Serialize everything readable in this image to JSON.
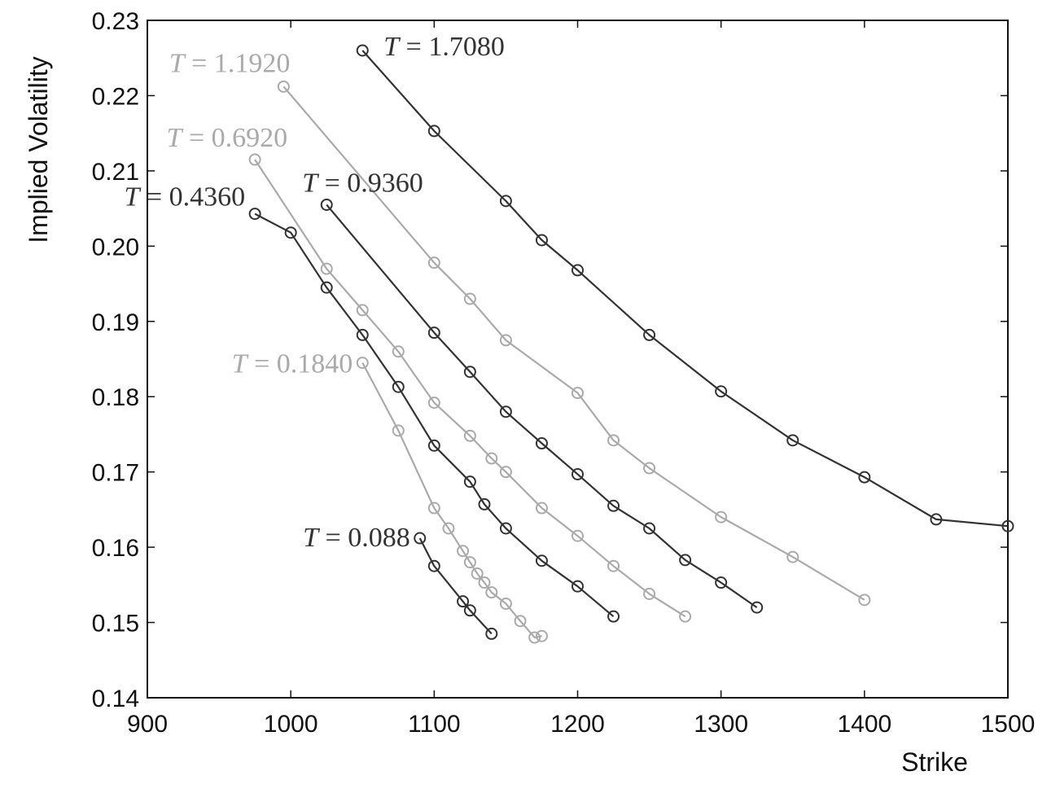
{
  "chart_data": {
    "type": "line",
    "title": "",
    "xlabel": "Strike",
    "ylabel": "Implied Volatility",
    "xlim": [
      900,
      1500
    ],
    "ylim": [
      0.14,
      0.23
    ],
    "xticks": [
      900,
      1000,
      1100,
      1200,
      1300,
      1400,
      1500
    ],
    "xtick_labels": [
      "900",
      "1000",
      "1100",
      "1200",
      "1300",
      "1400",
      "1500"
    ],
    "yticks": [
      0.14,
      0.15,
      0.16,
      0.17,
      0.18,
      0.19,
      0.2,
      0.21,
      0.22,
      0.23
    ],
    "ytick_labels": [
      "0.14",
      "0.15",
      "0.16",
      "0.17",
      "0.18",
      "0.19",
      "0.20",
      "0.21",
      "0.22",
      "0.23"
    ],
    "grid": false,
    "legend": "none",
    "series": [
      {
        "label_var": "T",
        "label_value": "= 0.088",
        "color": "#333333",
        "x": [
          1090,
          1100,
          1120,
          1125,
          1140
        ],
        "y": [
          0.1612,
          0.1575,
          0.1528,
          0.1516,
          0.1485
        ]
      },
      {
        "label_var": "T",
        "label_value": "= 0.1840",
        "color": "#aaaaaa",
        "x": [
          1050,
          1075,
          1100,
          1110,
          1120,
          1125,
          1130,
          1135,
          1140,
          1150,
          1160,
          1170,
          1175
        ],
        "y": [
          0.1845,
          0.1755,
          0.1652,
          0.1625,
          0.1595,
          0.158,
          0.1565,
          0.1553,
          0.154,
          0.1525,
          0.1502,
          0.148,
          0.1482
        ]
      },
      {
        "label_var": "T",
        "label_value": "= 0.4360",
        "color": "#333333",
        "x": [
          975,
          1000,
          1025,
          1050,
          1075,
          1100,
          1125,
          1135,
          1150,
          1175,
          1200,
          1225
        ],
        "y": [
          0.2043,
          0.2018,
          0.1945,
          0.1882,
          0.1813,
          0.1735,
          0.1687,
          0.1657,
          0.1625,
          0.1582,
          0.1548,
          0.1508
        ]
      },
      {
        "label_var": "T",
        "label_value": "= 0.6920",
        "color": "#aaaaaa",
        "x": [
          975,
          1025,
          1050,
          1075,
          1100,
          1125,
          1140,
          1150,
          1175,
          1200,
          1225,
          1250,
          1275
        ],
        "y": [
          0.2115,
          0.197,
          0.1915,
          0.186,
          0.1792,
          0.1748,
          0.1718,
          0.17,
          0.1652,
          0.1615,
          0.1575,
          0.1538,
          0.1508
        ]
      },
      {
        "label_var": "T",
        "label_value": "= 0.9360",
        "color": "#333333",
        "x": [
          1025,
          1100,
          1125,
          1150,
          1175,
          1200,
          1225,
          1250,
          1275,
          1300,
          1325
        ],
        "y": [
          0.2055,
          0.1885,
          0.1833,
          0.178,
          0.1738,
          0.1697,
          0.1655,
          0.1625,
          0.1583,
          0.1553,
          0.152
        ]
      },
      {
        "label_var": "T",
        "label_value": "= 1.1920",
        "color": "#aaaaaa",
        "x": [
          995,
          1100,
          1125,
          1150,
          1200,
          1225,
          1250,
          1300,
          1350,
          1400
        ],
        "y": [
          0.2212,
          0.1978,
          0.193,
          0.1875,
          0.1805,
          0.1742,
          0.1705,
          0.164,
          0.1587,
          0.153
        ]
      },
      {
        "label_var": "T",
        "label_value": "= 1.7080",
        "color": "#333333",
        "x": [
          1050,
          1100,
          1150,
          1175,
          1200,
          1250,
          1300,
          1350,
          1400,
          1450,
          1500
        ],
        "y": [
          0.226,
          0.2153,
          0.206,
          0.2008,
          0.1968,
          0.1882,
          0.1807,
          0.1742,
          0.1693,
          0.1637,
          0.1628
        ]
      }
    ]
  }
}
